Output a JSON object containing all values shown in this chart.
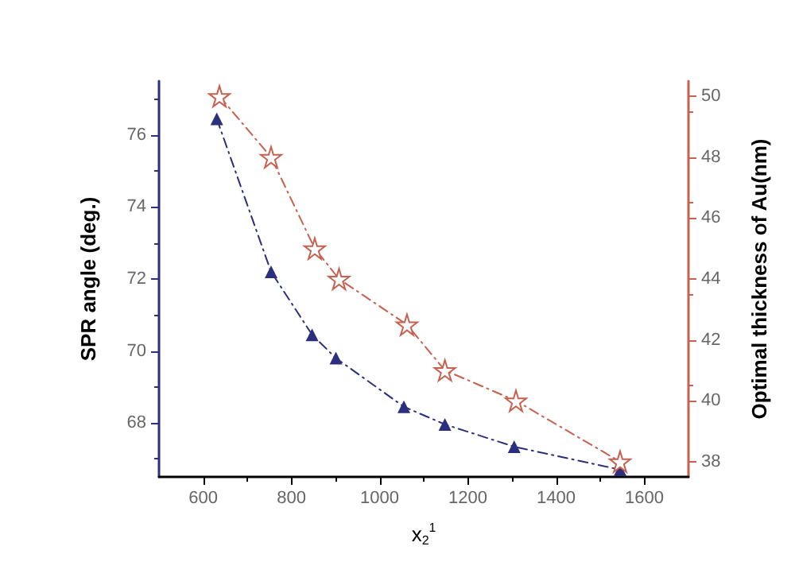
{
  "chart_data": {
    "type": "line",
    "xlabel": "x$_{2}$$^{1}$",
    "ylabel": "SPR angle (deg.)",
    "y2label": "Optimal thickness of Au(nm)",
    "xlim": [
      500,
      1700
    ],
    "xticks": [
      600,
      800,
      1000,
      1200,
      1400,
      1600
    ],
    "ylim": [
      66.5,
      77.5
    ],
    "yticks": [
      68,
      70,
      72,
      74,
      76
    ],
    "y2lim": [
      37.5,
      50.5
    ],
    "y2ticks": [
      38,
      40,
      42,
      44,
      46,
      48,
      50
    ],
    "series": [
      {
        "color": "#2b2f7e",
        "marker": "triangle",
        "line_style": "dashed",
        "x": [
          631,
          754,
          847,
          901,
          1055,
          1148,
          1305,
          1545
        ],
        "values": [
          76.45,
          72.2,
          70.45,
          69.8,
          68.45,
          67.96,
          67.34,
          66.7
        ]
      },
      {
        "color": "#c8604f",
        "marker": "star",
        "line_style": "dashed",
        "axis": "y2",
        "x": [
          637,
          754,
          853,
          908,
          1062,
          1148,
          1309,
          1545
        ],
        "values": [
          50,
          48,
          45,
          44,
          42.5,
          41,
          40,
          38
        ]
      }
    ],
    "grid": false
  }
}
